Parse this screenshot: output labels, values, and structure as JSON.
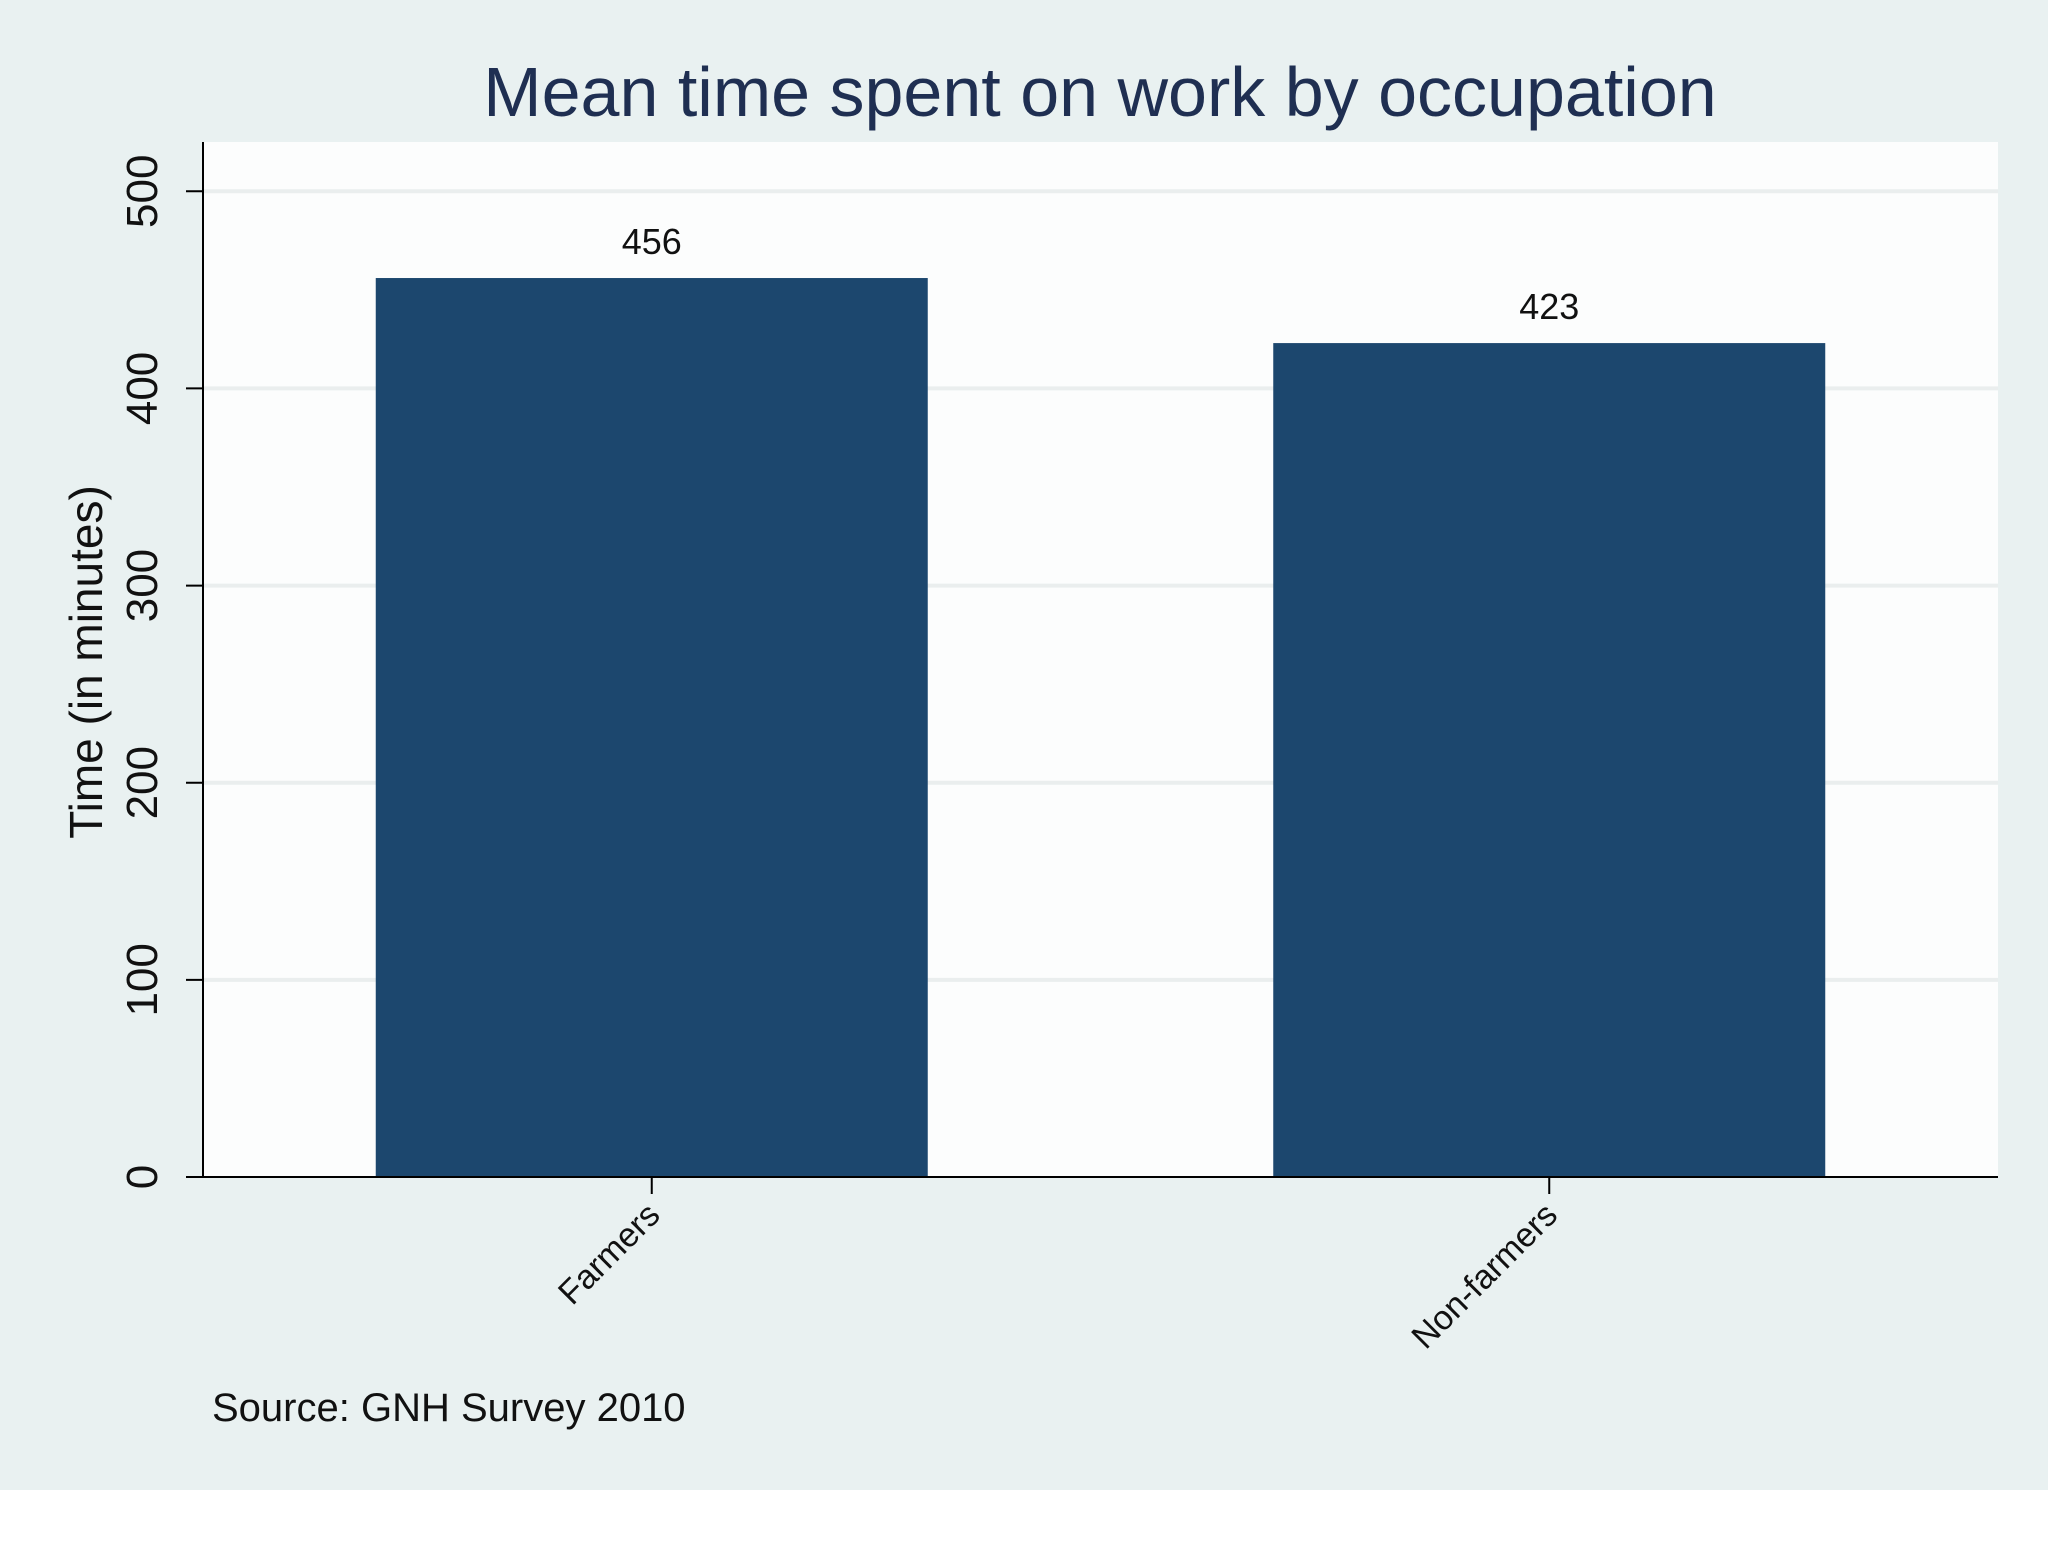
{
  "chart_data": {
    "type": "bar",
    "title": "Mean time spent on work by occupation",
    "xlabel": "",
    "ylabel": "Time (in minutes)",
    "categories": [
      "Farmers",
      "Non-farmers"
    ],
    "values": [
      456,
      423
    ],
    "value_labels": [
      "456",
      "423"
    ],
    "ylim": [
      0,
      525
    ],
    "yticks": [
      0,
      100,
      200,
      300,
      400,
      500
    ],
    "ytick_labels": [
      "0",
      "100",
      "200",
      "300",
      "400",
      "500"
    ],
    "grid": true,
    "legend": "none",
    "note": "Source: GNH Survey 2010",
    "colors": {
      "bar": "#1c476e",
      "outer_background": "#e9f1f1",
      "plot_background": "#fcfdfd",
      "grid": "#eaeeee",
      "title": "#1f2f52",
      "text": "#111111"
    }
  }
}
